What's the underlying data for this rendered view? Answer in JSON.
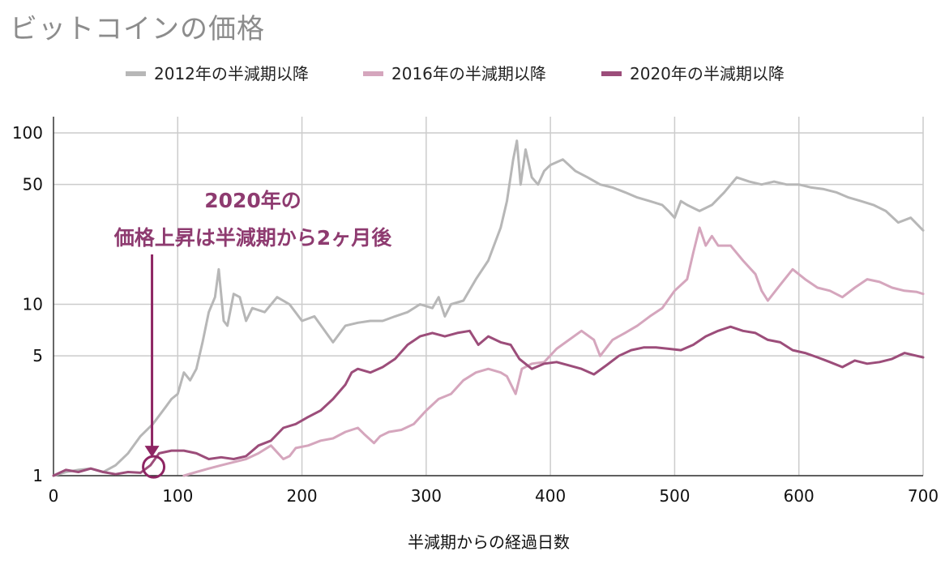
{
  "chart_data": {
    "type": "line",
    "title": "ビットコインの価格",
    "xlabel": "半減期からの経過日数",
    "ylabel": "",
    "x_ticks": [
      0,
      100,
      200,
      300,
      400,
      500,
      600,
      700
    ],
    "y_ticks": [
      1,
      5,
      10,
      50,
      100
    ],
    "xlim": [
      0,
      700
    ],
    "ylim": [
      1,
      100
    ],
    "y_scale": "log",
    "grid": true,
    "legend_position": "top",
    "series": [
      {
        "name": "2012年の半減期以降",
        "color": "#b7b7b7",
        "points": [
          [
            0,
            1.0
          ],
          [
            10,
            1.05
          ],
          [
            20,
            1.08
          ],
          [
            30,
            1.1
          ],
          [
            40,
            1.05
          ],
          [
            50,
            1.15
          ],
          [
            60,
            1.35
          ],
          [
            70,
            1.7
          ],
          [
            80,
            2.0
          ],
          [
            90,
            2.5
          ],
          [
            95,
            2.8
          ],
          [
            100,
            3.0
          ],
          [
            105,
            4.0
          ],
          [
            110,
            3.6
          ],
          [
            115,
            4.2
          ],
          [
            120,
            6.0
          ],
          [
            125,
            9.0
          ],
          [
            130,
            11.0
          ],
          [
            133,
            16.0
          ],
          [
            137,
            8.0
          ],
          [
            140,
            7.5
          ],
          [
            145,
            11.5
          ],
          [
            150,
            11.0
          ],
          [
            155,
            8.0
          ],
          [
            160,
            9.5
          ],
          [
            170,
            9.0
          ],
          [
            180,
            11.0
          ],
          [
            190,
            10.0
          ],
          [
            200,
            8.0
          ],
          [
            210,
            8.5
          ],
          [
            225,
            6.0
          ],
          [
            235,
            7.5
          ],
          [
            245,
            7.8
          ],
          [
            255,
            8.0
          ],
          [
            265,
            8.0
          ],
          [
            275,
            8.5
          ],
          [
            285,
            9.0
          ],
          [
            295,
            10.0
          ],
          [
            305,
            9.5
          ],
          [
            310,
            11.0
          ],
          [
            315,
            8.5
          ],
          [
            320,
            10.0
          ],
          [
            330,
            10.5
          ],
          [
            340,
            14.0
          ],
          [
            350,
            18.0
          ],
          [
            360,
            28.0
          ],
          [
            365,
            40.0
          ],
          [
            370,
            70.0
          ],
          [
            373,
            90.0
          ],
          [
            376,
            50.0
          ],
          [
            380,
            80.0
          ],
          [
            385,
            55.0
          ],
          [
            390,
            50.0
          ],
          [
            395,
            60.0
          ],
          [
            400,
            65.0
          ],
          [
            410,
            70.0
          ],
          [
            420,
            60.0
          ],
          [
            430,
            55.0
          ],
          [
            440,
            50.0
          ],
          [
            450,
            48.0
          ],
          [
            460,
            45.0
          ],
          [
            470,
            42.0
          ],
          [
            480,
            40.0
          ],
          [
            490,
            38.0
          ],
          [
            495,
            35.0
          ],
          [
            500,
            32.0
          ],
          [
            505,
            40.0
          ],
          [
            510,
            38.0
          ],
          [
            520,
            35.0
          ],
          [
            530,
            38.0
          ],
          [
            540,
            45.0
          ],
          [
            550,
            55.0
          ],
          [
            560,
            52.0
          ],
          [
            570,
            50.0
          ],
          [
            580,
            52.0
          ],
          [
            590,
            50.0
          ],
          [
            600,
            50.0
          ],
          [
            610,
            48.0
          ],
          [
            620,
            47.0
          ],
          [
            630,
            45.0
          ],
          [
            640,
            42.0
          ],
          [
            650,
            40.0
          ],
          [
            660,
            38.0
          ],
          [
            670,
            35.0
          ],
          [
            680,
            30.0
          ],
          [
            690,
            32.0
          ],
          [
            700,
            27.0
          ]
        ]
      },
      {
        "name": "2016年の半減期以降",
        "color": "#d5a6bd",
        "points": [
          [
            105,
            1.0
          ],
          [
            115,
            1.05
          ],
          [
            125,
            1.1
          ],
          [
            135,
            1.15
          ],
          [
            145,
            1.2
          ],
          [
            155,
            1.25
          ],
          [
            165,
            1.35
          ],
          [
            175,
            1.5
          ],
          [
            185,
            1.25
          ],
          [
            190,
            1.3
          ],
          [
            195,
            1.45
          ],
          [
            205,
            1.5
          ],
          [
            215,
            1.6
          ],
          [
            225,
            1.65
          ],
          [
            235,
            1.8
          ],
          [
            245,
            1.9
          ],
          [
            250,
            1.75
          ],
          [
            258,
            1.55
          ],
          [
            263,
            1.7
          ],
          [
            270,
            1.8
          ],
          [
            280,
            1.85
          ],
          [
            290,
            2.0
          ],
          [
            300,
            2.4
          ],
          [
            310,
            2.8
          ],
          [
            320,
            3.0
          ],
          [
            330,
            3.6
          ],
          [
            340,
            4.0
          ],
          [
            350,
            4.2
          ],
          [
            360,
            4.0
          ],
          [
            365,
            3.8
          ],
          [
            372,
            3.0
          ],
          [
            377,
            4.2
          ],
          [
            385,
            4.5
          ],
          [
            395,
            4.6
          ],
          [
            405,
            5.5
          ],
          [
            415,
            6.2
          ],
          [
            425,
            7.0
          ],
          [
            435,
            6.2
          ],
          [
            440,
            5.0
          ],
          [
            450,
            6.2
          ],
          [
            460,
            6.8
          ],
          [
            470,
            7.5
          ],
          [
            480,
            8.5
          ],
          [
            490,
            9.5
          ],
          [
            500,
            12.0
          ],
          [
            510,
            14.0
          ],
          [
            515,
            20.0
          ],
          [
            520,
            28.0
          ],
          [
            525,
            22.0
          ],
          [
            530,
            25.0
          ],
          [
            535,
            22.0
          ],
          [
            545,
            22.0
          ],
          [
            555,
            18.0
          ],
          [
            565,
            15.0
          ],
          [
            570,
            12.0
          ],
          [
            575,
            10.5
          ],
          [
            585,
            13.0
          ],
          [
            595,
            16.0
          ],
          [
            605,
            14.0
          ],
          [
            615,
            12.5
          ],
          [
            625,
            12.0
          ],
          [
            635,
            11.0
          ],
          [
            645,
            12.5
          ],
          [
            655,
            14.0
          ],
          [
            665,
            13.5
          ],
          [
            675,
            12.5
          ],
          [
            685,
            12.0
          ],
          [
            695,
            11.8
          ],
          [
            700,
            11.5
          ]
        ]
      },
      {
        "name": "2020年の半減期以降",
        "color": "#9c4d7a",
        "points": [
          [
            0,
            1.0
          ],
          [
            10,
            1.08
          ],
          [
            20,
            1.05
          ],
          [
            30,
            1.1
          ],
          [
            40,
            1.05
          ],
          [
            50,
            1.02
          ],
          [
            60,
            1.05
          ],
          [
            70,
            1.04
          ],
          [
            78,
            1.15
          ],
          [
            85,
            1.35
          ],
          [
            95,
            1.4
          ],
          [
            105,
            1.4
          ],
          [
            115,
            1.35
          ],
          [
            125,
            1.25
          ],
          [
            135,
            1.28
          ],
          [
            145,
            1.25
          ],
          [
            155,
            1.3
          ],
          [
            165,
            1.5
          ],
          [
            175,
            1.6
          ],
          [
            185,
            1.9
          ],
          [
            195,
            2.0
          ],
          [
            205,
            2.2
          ],
          [
            215,
            2.4
          ],
          [
            225,
            2.8
          ],
          [
            235,
            3.4
          ],
          [
            240,
            4.0
          ],
          [
            245,
            4.2
          ],
          [
            255,
            4.0
          ],
          [
            265,
            4.3
          ],
          [
            275,
            4.8
          ],
          [
            285,
            5.8
          ],
          [
            295,
            6.5
          ],
          [
            305,
            6.8
          ],
          [
            315,
            6.5
          ],
          [
            325,
            6.8
          ],
          [
            335,
            7.0
          ],
          [
            342,
            5.8
          ],
          [
            350,
            6.5
          ],
          [
            360,
            6.0
          ],
          [
            368,
            5.8
          ],
          [
            375,
            4.8
          ],
          [
            385,
            4.2
          ],
          [
            395,
            4.5
          ],
          [
            405,
            4.6
          ],
          [
            415,
            4.4
          ],
          [
            425,
            4.2
          ],
          [
            435,
            3.9
          ],
          [
            445,
            4.4
          ],
          [
            455,
            5.0
          ],
          [
            465,
            5.4
          ],
          [
            475,
            5.6
          ],
          [
            485,
            5.6
          ],
          [
            495,
            5.5
          ],
          [
            505,
            5.4
          ],
          [
            515,
            5.8
          ],
          [
            525,
            6.5
          ],
          [
            535,
            7.0
          ],
          [
            545,
            7.4
          ],
          [
            555,
            7.0
          ],
          [
            565,
            6.8
          ],
          [
            575,
            6.2
          ],
          [
            585,
            6.0
          ],
          [
            595,
            5.4
          ],
          [
            605,
            5.2
          ],
          [
            615,
            4.9
          ],
          [
            625,
            4.6
          ],
          [
            635,
            4.3
          ],
          [
            645,
            4.7
          ],
          [
            655,
            4.5
          ],
          [
            665,
            4.6
          ],
          [
            675,
            4.8
          ],
          [
            685,
            5.2
          ],
          [
            695,
            5.0
          ],
          [
            700,
            4.9
          ]
        ]
      }
    ],
    "annotation": {
      "text_line1": "2020年の",
      "text_line2": "価格上昇は半減期から2ヶ月後",
      "arrow_target_x": 78,
      "arrow_target_y": 1.15
    }
  }
}
